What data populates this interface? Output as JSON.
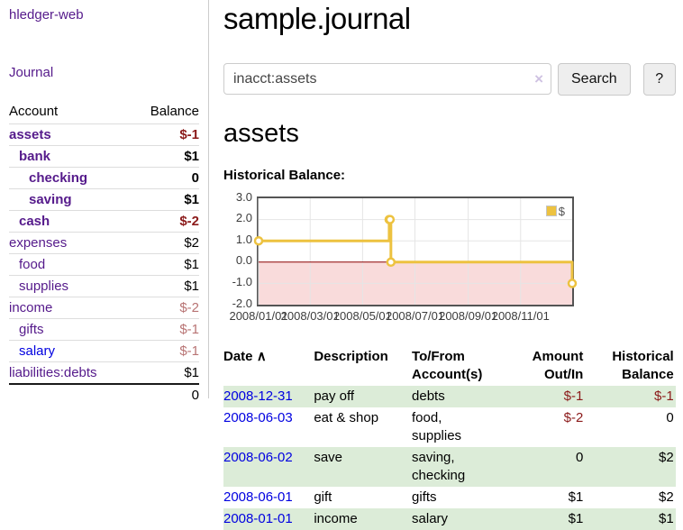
{
  "app": {
    "title": "hledger-web"
  },
  "colors": {
    "purple_link": "#551a8b",
    "blue_link": "#0000e0",
    "negative_strong": "#8b1a1a",
    "negative_dim": "#b87474",
    "row_stripe_green": "#dcecd8",
    "chart_line_gold": "#edc240",
    "chart_negative_fill": "#f9dbdb",
    "chart_zero_line": "#8b0000"
  },
  "sidebar": {
    "journal_link": "Journal",
    "accounts_table": {
      "headers": {
        "account": "Account",
        "balance": "Balance"
      },
      "rows": [
        {
          "account": "assets",
          "balance": "$-1",
          "depth": 1,
          "bold": true,
          "balance_style": "neg-strong",
          "link_style": "purple"
        },
        {
          "account": "bank",
          "balance": "$1",
          "depth": 2,
          "bold": true,
          "balance_style": "plain",
          "link_style": "purple"
        },
        {
          "account": "checking",
          "balance": "0",
          "depth": 3,
          "bold": true,
          "balance_style": "plain",
          "link_style": "purple"
        },
        {
          "account": "saving",
          "balance": "$1",
          "depth": 3,
          "bold": true,
          "balance_style": "plain",
          "link_style": "purple"
        },
        {
          "account": "cash",
          "balance": "$-2",
          "depth": 2,
          "bold": true,
          "balance_style": "neg-strong",
          "link_style": "purple"
        },
        {
          "account": "expenses",
          "balance": "$2",
          "depth": 1,
          "bold": false,
          "balance_style": "plain",
          "link_style": "purple"
        },
        {
          "account": "food",
          "balance": "$1",
          "depth": 2,
          "bold": false,
          "balance_style": "plain",
          "link_style": "purple"
        },
        {
          "account": "supplies",
          "balance": "$1",
          "depth": 2,
          "bold": false,
          "balance_style": "plain",
          "link_style": "purple"
        },
        {
          "account": "income",
          "balance": "$-2",
          "depth": 1,
          "bold": false,
          "balance_style": "neg-dim",
          "link_style": "purple"
        },
        {
          "account": "gifts",
          "balance": "$-1",
          "depth": 2,
          "bold": false,
          "balance_style": "neg-dim",
          "link_style": "purple"
        },
        {
          "account": "salary",
          "balance": "$-1",
          "depth": 2,
          "bold": false,
          "balance_style": "neg-dim",
          "link_style": "blue"
        },
        {
          "account": "liabilities:debts",
          "balance": "$1",
          "depth": 1,
          "bold": false,
          "balance_style": "plain",
          "link_style": "purple"
        }
      ],
      "total": "0"
    }
  },
  "main": {
    "title": "sample.journal",
    "search": {
      "value": "inacct:assets",
      "clear_icon": "×",
      "search_button": "Search",
      "help_button": "?"
    },
    "account_heading": "assets",
    "chart_heading": "Historical Balance:"
  },
  "chart_data": {
    "type": "line",
    "step": true,
    "title": "Historical Balance:",
    "legend": {
      "label": "$",
      "position": "top-right"
    },
    "xlim": [
      "2008-01-01",
      "2008-12-31"
    ],
    "ylim": [
      -2,
      3
    ],
    "grid": true,
    "y_ticks": [
      {
        "value": 3,
        "label": "3.0"
      },
      {
        "value": 2,
        "label": "2.0"
      },
      {
        "value": 1,
        "label": "1.0"
      },
      {
        "value": 0,
        "label": "0.0"
      },
      {
        "value": -1,
        "label": "-1.0"
      },
      {
        "value": -2,
        "label": "-2.0"
      }
    ],
    "x_ticks": [
      {
        "date": "2008-01-01",
        "label": "2008/01/01"
      },
      {
        "date": "2008-03-01",
        "label": "2008/03/01"
      },
      {
        "date": "2008-05-01",
        "label": "2008/05/01"
      },
      {
        "date": "2008-07-01",
        "label": "2008/07/01"
      },
      {
        "date": "2008-09-01",
        "label": "2008/09/01"
      },
      {
        "date": "2008-11-01",
        "label": "2008/11/01"
      }
    ],
    "series": [
      {
        "name": "$",
        "points": [
          {
            "date": "2008-01-01",
            "value": 1
          },
          {
            "date": "2008-06-01",
            "value": 2
          },
          {
            "date": "2008-06-02",
            "value": 2
          },
          {
            "date": "2008-06-03",
            "value": 0
          },
          {
            "date": "2008-12-31",
            "value": -1
          }
        ]
      }
    ]
  },
  "register": {
    "headers": {
      "date": "Date",
      "description": "Description",
      "accounts": "To/From Account(s)",
      "amount": "Amount Out/In",
      "balance": "Historical Balance"
    },
    "sort_indicator": "∧",
    "rows": [
      {
        "date": "2008-12-31",
        "description": "pay off",
        "accounts": "debts",
        "amount": "$-1",
        "amount_style": "neg",
        "balance": "$-1",
        "balance_style": "neg"
      },
      {
        "date": "2008-06-03",
        "description": "eat & shop",
        "accounts": "food, supplies",
        "amount": "$-2",
        "amount_style": "neg",
        "balance": "0",
        "balance_style": "plain"
      },
      {
        "date": "2008-06-02",
        "description": "save",
        "accounts": "saving, checking",
        "amount": "0",
        "amount_style": "plain",
        "balance": "$2",
        "balance_style": "plain"
      },
      {
        "date": "2008-06-01",
        "description": "gift",
        "accounts": "gifts",
        "amount": "$1",
        "amount_style": "plain",
        "balance": "$2",
        "balance_style": "plain"
      },
      {
        "date": "2008-01-01",
        "description": "income",
        "accounts": "salary",
        "amount": "$1",
        "amount_style": "plain",
        "balance": "$1",
        "balance_style": "plain"
      }
    ]
  }
}
